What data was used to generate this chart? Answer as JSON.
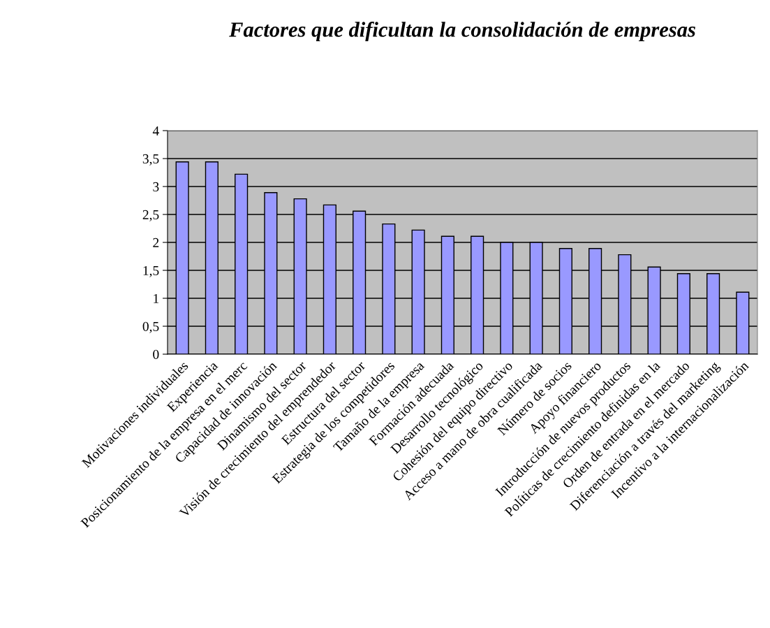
{
  "chart_data": {
    "type": "bar",
    "title": "Factores que dificultan la consolidación de empresas",
    "categories": [
      "Motivaciones individuales",
      "Experiencia",
      "Posicionamiento de la empresa en el merc",
      "Capacidad de innovación",
      "Dinamismo del sector",
      "Visión de crecimiento del emprendedor",
      "Estructura del sector",
      "Estrategia de los competidores",
      "Tamaño de la empresa",
      "Formación adecuada",
      "Desarrollo tecnológico",
      "Cohesión del equipo directivo",
      "Acceso a mano de obra cualificada",
      "Número de socios",
      "Apoyo financiero",
      "Introducción de nuevos productos",
      "Políticas de crecimiento definidas en la",
      "Orden de entrada en el mercado",
      "Diferenciación a través del marketing",
      "Incentivo a la internacionalización"
    ],
    "values": [
      3.44,
      3.44,
      3.22,
      2.89,
      2.78,
      2.67,
      2.56,
      2.33,
      2.22,
      2.11,
      2.11,
      2.0,
      2.0,
      1.89,
      1.89,
      1.78,
      1.56,
      1.44,
      1.44,
      1.11
    ],
    "color": "#9999ff",
    "ylim": [
      0,
      4
    ],
    "yticks": [
      0,
      {
        "value": 0.5,
        "label": "0,5"
      },
      1,
      {
        "value": 1.5,
        "label": "1,5"
      },
      2,
      {
        "value": 2.5,
        "label": "2,5"
      },
      3,
      {
        "value": 3.5,
        "label": "3,5"
      },
      4
    ],
    "grid": "y"
  }
}
